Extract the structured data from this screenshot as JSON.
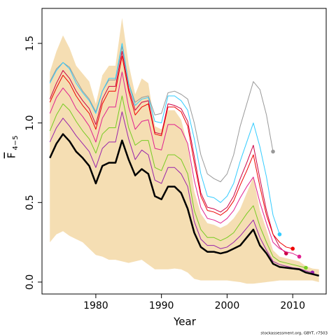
{
  "chart_data": {
    "type": "line",
    "xlabel": "Year",
    "ylabel": "F",
    "ylabel_sub": "4−5",
    "footnote": "stockassessment.org, GBYT, r7503",
    "x": [
      1973,
      1974,
      1975,
      1976,
      1977,
      1978,
      1979,
      1980,
      1981,
      1982,
      1983,
      1984,
      1985,
      1986,
      1987,
      1988,
      1989,
      1990,
      1991,
      1992,
      1993,
      1994,
      1995,
      1996,
      1997,
      1998,
      1999,
      2000,
      2001,
      2002,
      2003,
      2004,
      2005,
      2006,
      2007,
      2008,
      2009,
      2010,
      2011,
      2012,
      2013,
      2014
    ],
    "xlim": [
      1971.8,
      2015.1
    ],
    "xticks": [
      1980,
      1990,
      2000,
      2010
    ],
    "ylim": [
      -0.075,
      1.72
    ],
    "yticks": [
      {
        "value": 0,
        "label": "0.0"
      },
      0.5,
      {
        "value": 1,
        "label": "1.0"
      },
      1.5
    ],
    "band": {
      "color": "#f5deb3",
      "upper": [
        1.32,
        1.45,
        1.55,
        1.47,
        1.36,
        1.31,
        1.26,
        1.12,
        1.3,
        1.36,
        1.36,
        1.66,
        1.37,
        1.18,
        1.28,
        1.25,
        0.98,
        0.96,
        1.08,
        1.08,
        1.02,
        0.86,
        0.57,
        0.43,
        0.37,
        0.36,
        0.34,
        0.36,
        0.4,
        0.46,
        0.56,
        0.66,
        0.45,
        0.33,
        0.2,
        0.16,
        0.15,
        0.14,
        0.13,
        0.1,
        0.085,
        0.08
      ],
      "lower": [
        0.25,
        0.3,
        0.32,
        0.29,
        0.27,
        0.25,
        0.21,
        0.17,
        0.16,
        0.14,
        0.14,
        0.13,
        0.12,
        0.13,
        0.14,
        0.11,
        0.08,
        0.08,
        0.08,
        0.085,
        0.08,
        0.06,
        0.02,
        0.01,
        0.01,
        0.01,
        0.01,
        0.01,
        0.005,
        0,
        -0.01,
        -0.01,
        -0.005,
        0,
        0.005,
        0.01,
        0.01,
        0.01,
        0.01,
        0.01,
        0.01,
        0
      ]
    },
    "endpoint_markers": true,
    "series": [
      {
        "color": "#999999",
        "width": 1,
        "values": [
          1.26,
          1.34,
          1.38,
          1.35,
          1.27,
          1.2,
          1.15,
          1.07,
          1.2,
          1.27,
          1.27,
          1.48,
          1.25,
          1.13,
          1.16,
          1.17,
          1.05,
          1.06,
          1.19,
          1.2,
          1.18,
          1.15,
          1.0,
          0.8,
          0.68,
          0.65,
          0.63,
          0.68,
          0.8,
          0.98,
          1.12,
          1.26,
          1.21,
          1.05,
          0.82,
          null,
          null,
          null,
          null,
          null,
          null,
          null
        ]
      },
      {
        "color": "#33ccff",
        "width": 1,
        "values": [
          1.25,
          1.33,
          1.38,
          1.34,
          1.25,
          1.19,
          1.14,
          1.06,
          1.2,
          1.28,
          1.28,
          1.5,
          1.25,
          1.11,
          1.15,
          1.16,
          1.01,
          1.0,
          1.17,
          1.17,
          1.14,
          1.08,
          0.9,
          0.68,
          0.54,
          0.53,
          0.5,
          0.54,
          0.62,
          0.76,
          0.88,
          1.0,
          0.85,
          0.66,
          0.42,
          0.3,
          null,
          null,
          null,
          null,
          null,
          null
        ]
      },
      {
        "color": "#cc0044",
        "width": 1,
        "values": [
          1.15,
          1.25,
          1.33,
          1.28,
          1.2,
          1.14,
          1.09,
          0.99,
          1.15,
          1.23,
          1.23,
          1.45,
          1.22,
          1.08,
          1.13,
          1.14,
          0.94,
          0.93,
          1.12,
          1.11,
          1.09,
          1.01,
          0.79,
          0.56,
          0.47,
          0.46,
          0.44,
          0.47,
          0.54,
          0.65,
          0.75,
          0.86,
          0.65,
          0.45,
          0.3,
          0.22,
          0.18,
          null,
          null,
          null,
          null,
          null
        ]
      },
      {
        "color": "#ee0000",
        "width": 1,
        "values": [
          1.13,
          1.22,
          1.3,
          1.25,
          1.17,
          1.11,
          1.06,
          0.96,
          1.12,
          1.2,
          1.2,
          1.42,
          1.2,
          1.05,
          1.1,
          1.12,
          0.93,
          0.92,
          1.1,
          1.1,
          1.07,
          0.98,
          0.75,
          0.54,
          0.45,
          0.44,
          0.42,
          0.45,
          0.51,
          0.61,
          0.7,
          0.8,
          0.6,
          0.42,
          0.3,
          0.25,
          0.22,
          0.21,
          null,
          null,
          null,
          null
        ]
      },
      {
        "color": "#e0208f",
        "width": 1,
        "values": [
          1.06,
          1.16,
          1.22,
          1.17,
          1.09,
          1.04,
          0.98,
          0.88,
          1.03,
          1.1,
          1.1,
          1.32,
          1.1,
          0.96,
          1.01,
          1.02,
          0.84,
          0.83,
          0.99,
          0.99,
          0.96,
          0.87,
          0.64,
          0.47,
          0.4,
          0.39,
          0.37,
          0.4,
          0.45,
          0.53,
          0.6,
          0.66,
          0.5,
          0.37,
          0.25,
          0.21,
          0.19,
          0.18,
          0.16,
          null,
          null,
          null
        ]
      },
      {
        "color": "#77cc22",
        "width": 1,
        "values": [
          0.95,
          1.05,
          1.12,
          1.08,
          1.01,
          0.95,
          0.9,
          0.81,
          0.93,
          0.97,
          0.97,
          1.17,
          0.97,
          0.86,
          0.89,
          0.89,
          0.72,
          0.7,
          0.8,
          0.8,
          0.77,
          0.68,
          0.45,
          0.33,
          0.28,
          0.28,
          0.26,
          0.28,
          0.31,
          0.37,
          0.43,
          0.48,
          0.35,
          0.25,
          0.16,
          0.13,
          0.12,
          0.11,
          0.1,
          0.09,
          null,
          null
        ]
      },
      {
        "color": "#9922aa",
        "width": 1,
        "values": [
          0.88,
          0.97,
          1.03,
          0.98,
          0.92,
          0.87,
          0.82,
          0.72,
          0.84,
          0.88,
          0.88,
          1.07,
          0.9,
          0.77,
          0.83,
          0.8,
          0.64,
          0.62,
          0.72,
          0.72,
          0.68,
          0.6,
          0.38,
          0.27,
          0.23,
          0.23,
          0.21,
          0.22,
          0.25,
          0.29,
          0.34,
          0.39,
          0.28,
          0.2,
          0.13,
          0.11,
          0.1,
          0.09,
          0.085,
          0.07,
          0.06,
          null
        ]
      },
      {
        "color": "#000000",
        "width": 2.5,
        "values": [
          0.78,
          0.87,
          0.93,
          0.885,
          0.82,
          0.78,
          0.73,
          0.62,
          0.73,
          0.75,
          0.75,
          0.89,
          0.77,
          0.67,
          0.71,
          0.68,
          0.54,
          0.52,
          0.6,
          0.6,
          0.56,
          0.46,
          0.31,
          0.22,
          0.19,
          0.19,
          0.18,
          0.19,
          0.21,
          0.23,
          0.28,
          0.33,
          0.23,
          0.18,
          0.115,
          0.095,
          0.09,
          0.085,
          0.08,
          0.06,
          0.05,
          0.04
        ]
      }
    ]
  }
}
